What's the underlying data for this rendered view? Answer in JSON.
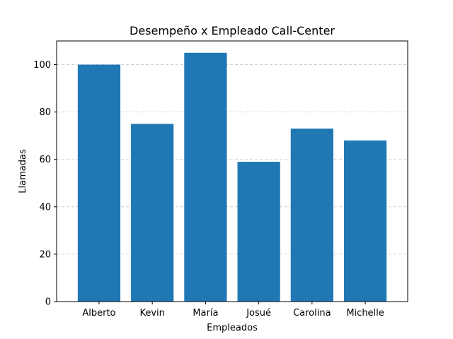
{
  "chart_data": {
    "type": "bar",
    "title": "Desempeño x Empleado Call-Center",
    "xlabel": "Empleados",
    "ylabel": "Llamadas",
    "categories": [
      "Alberto",
      "Kevin",
      "María",
      "Josué",
      "Carolina",
      "Michelle"
    ],
    "values": [
      100,
      75,
      105,
      59,
      73,
      68
    ],
    "ylim": [
      0,
      110
    ],
    "yticks": [
      0,
      20,
      40,
      60,
      80,
      100
    ],
    "grid": "y-axis dashed",
    "bar_color": "#1f77b4"
  }
}
